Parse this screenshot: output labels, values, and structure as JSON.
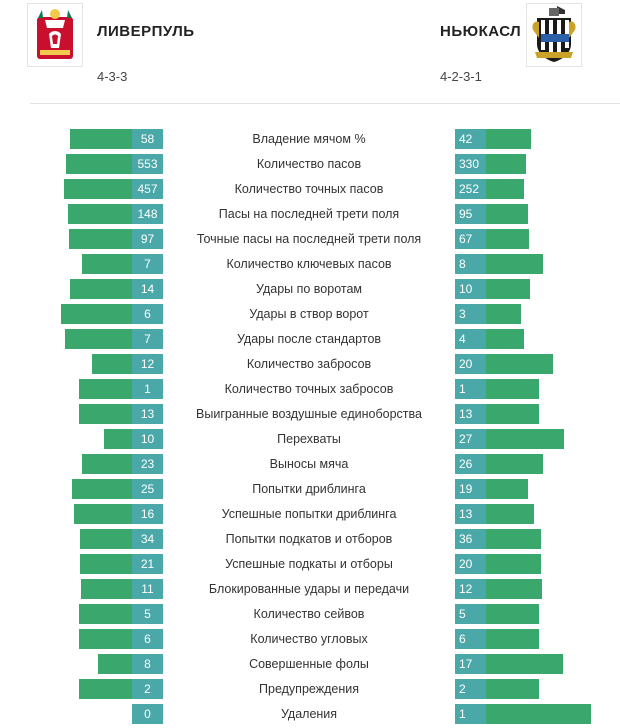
{
  "home": {
    "name": "ЛИВЕРПУЛЬ",
    "formation": "4-3-3",
    "logo": "liverpool-crest-icon"
  },
  "away": {
    "name": "НЬЮКАСЛ",
    "formation": "4-2-3-1",
    "logo": "newcastle-crest-icon"
  },
  "colors": {
    "bar": "#3aa76d",
    "value_box": "#4aa8a9",
    "divider": "#e2e2e2"
  },
  "stats": [
    {
      "label": "Владение мячом %",
      "home": "58",
      "away": "42"
    },
    {
      "label": "Количество пасов",
      "home": "553",
      "away": "330"
    },
    {
      "label": "Количество точных пасов",
      "home": "457",
      "away": "252"
    },
    {
      "label": "Пасы на последней трети поля",
      "home": "148",
      "away": "95"
    },
    {
      "label": "Точные пасы на последней трети поля",
      "home": "97",
      "away": "67"
    },
    {
      "label": "Количество ключевых пасов",
      "home": "7",
      "away": "8"
    },
    {
      "label": "Удары по воротам",
      "home": "14",
      "away": "10"
    },
    {
      "label": "Удары в створ ворот",
      "home": "6",
      "away": "3"
    },
    {
      "label": "Удары после стандартов",
      "home": "7",
      "away": "4"
    },
    {
      "label": "Количество забросов",
      "home": "12",
      "away": "20"
    },
    {
      "label": "Количество точных забросов",
      "home": "1",
      "away": "1"
    },
    {
      "label": "Выигранные воздушные единоборства",
      "home": "13",
      "away": "13"
    },
    {
      "label": "Перехваты",
      "home": "10",
      "away": "27"
    },
    {
      "label": "Выносы мяча",
      "home": "23",
      "away": "26"
    },
    {
      "label": "Попытки дриблинга",
      "home": "25",
      "away": "19"
    },
    {
      "label": "Успешные попытки дриблинга",
      "home": "16",
      "away": "13"
    },
    {
      "label": "Попытки подкатов и отборов",
      "home": "34",
      "away": "36"
    },
    {
      "label": "Успешные подкаты и отборы",
      "home": "21",
      "away": "20"
    },
    {
      "label": "Блокированные удары и передачи",
      "home": "11",
      "away": "12"
    },
    {
      "label": "Количество сейвов",
      "home": "5",
      "away": "5"
    },
    {
      "label": "Количество угловых",
      "home": "6",
      "away": "6"
    },
    {
      "label": "Совершенные фолы",
      "home": "8",
      "away": "17"
    },
    {
      "label": "Предупреждения",
      "home": "2",
      "away": "2"
    },
    {
      "label": "Удаления",
      "home": "0",
      "away": "1"
    }
  ]
}
